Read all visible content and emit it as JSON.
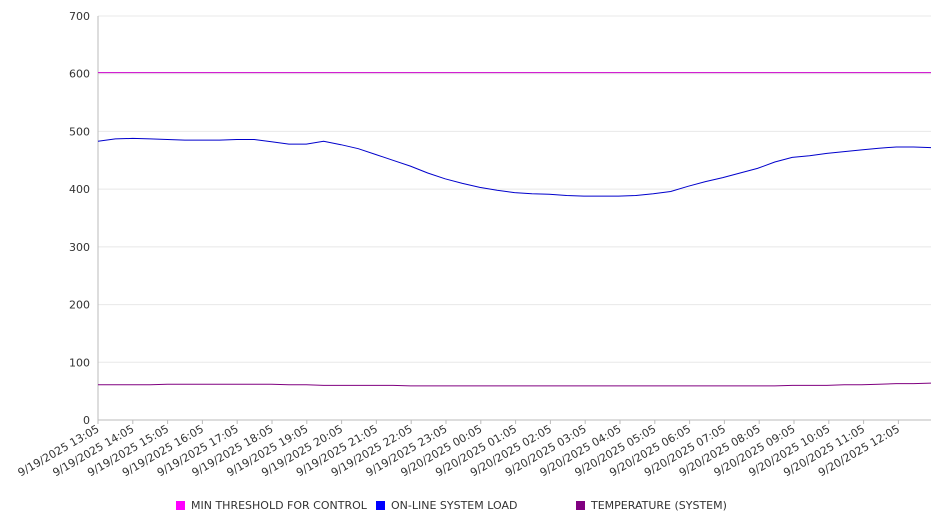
{
  "chart_data": {
    "type": "line",
    "title": "",
    "xlabel": "",
    "ylabel": "",
    "ylim": [
      0,
      700
    ],
    "yticks": [
      0,
      100,
      200,
      300,
      400,
      500,
      600,
      700
    ],
    "grid": true,
    "legend_position": "bottom",
    "x_tick_labels": [
      "9/19/2025 13:05",
      "9/19/2025 14:05",
      "9/19/2025 15:05",
      "9/19/2025 16:05",
      "9/19/2025 17:05",
      "9/19/2025 18:05",
      "9/19/2025 19:05",
      "9/19/2025 20:05",
      "9/19/2025 21:05",
      "9/19/2025 22:05",
      "9/19/2025 23:05",
      "9/20/2025 00:05",
      "9/20/2025 01:05",
      "9/20/2025 02:05",
      "9/20/2025 03:05",
      "9/20/2025 04:05",
      "9/20/2025 05:05",
      "9/20/2025 06:05",
      "9/20/2025 07:05",
      "9/20/2025 08:05",
      "9/20/2025 09:05",
      "9/20/2025 10:05",
      "9/20/2025 11:05",
      "9/20/2025 12:05"
    ],
    "x_hours": [
      0,
      0.5,
      1,
      1.5,
      2,
      2.5,
      3,
      3.5,
      4,
      4.5,
      5,
      5.5,
      6,
      6.5,
      7,
      7.5,
      8,
      8.5,
      9,
      9.5,
      10,
      10.5,
      11,
      11.5,
      12,
      12.5,
      13,
      13.5,
      14,
      14.5,
      15,
      15.5,
      16,
      16.5,
      17,
      17.5,
      18,
      18.5,
      19,
      19.5,
      20,
      20.5,
      21,
      21.5,
      22,
      22.5,
      23,
      23.5,
      24
    ],
    "series": [
      {
        "name": "MIN THRESHOLD FOR CONTROL",
        "color": "#cc00cc",
        "values": [
          602,
          602,
          602,
          602,
          602,
          602,
          602,
          602,
          602,
          602,
          602,
          602,
          602,
          602,
          602,
          602,
          602,
          602,
          602,
          602,
          602,
          602,
          602,
          602,
          602,
          602,
          602,
          602,
          602,
          602,
          602,
          602,
          602,
          602,
          602,
          602,
          602,
          602,
          602,
          602,
          602,
          602,
          602,
          602,
          602,
          602,
          602,
          602,
          602
        ]
      },
      {
        "name": "ON-LINE SYSTEM LOAD",
        "color": "#0000cc",
        "values": [
          483,
          487,
          488,
          487,
          486,
          485,
          485,
          485,
          486,
          486,
          482,
          478,
          478,
          483,
          477,
          470,
          460,
          450,
          440,
          428,
          418,
          410,
          403,
          398,
          394,
          392,
          391,
          389,
          388,
          388,
          388,
          389,
          392,
          396,
          405,
          413,
          420,
          428,
          436,
          447,
          455,
          458,
          462,
          465,
          468,
          471,
          473,
          473,
          472
        ]
      },
      {
        "name": "TEMPERATURE (SYSTEM)",
        "color": "#800080",
        "values": [
          61,
          61,
          61,
          61,
          62,
          62,
          62,
          62,
          62,
          62,
          62,
          61,
          61,
          60,
          60,
          60,
          60,
          60,
          59,
          59,
          59,
          59,
          59,
          59,
          59,
          59,
          59,
          59,
          59,
          59,
          59,
          59,
          59,
          59,
          59,
          59,
          59,
          59,
          59,
          59,
          60,
          60,
          60,
          61,
          61,
          62,
          63,
          63,
          64
        ]
      }
    ]
  }
}
